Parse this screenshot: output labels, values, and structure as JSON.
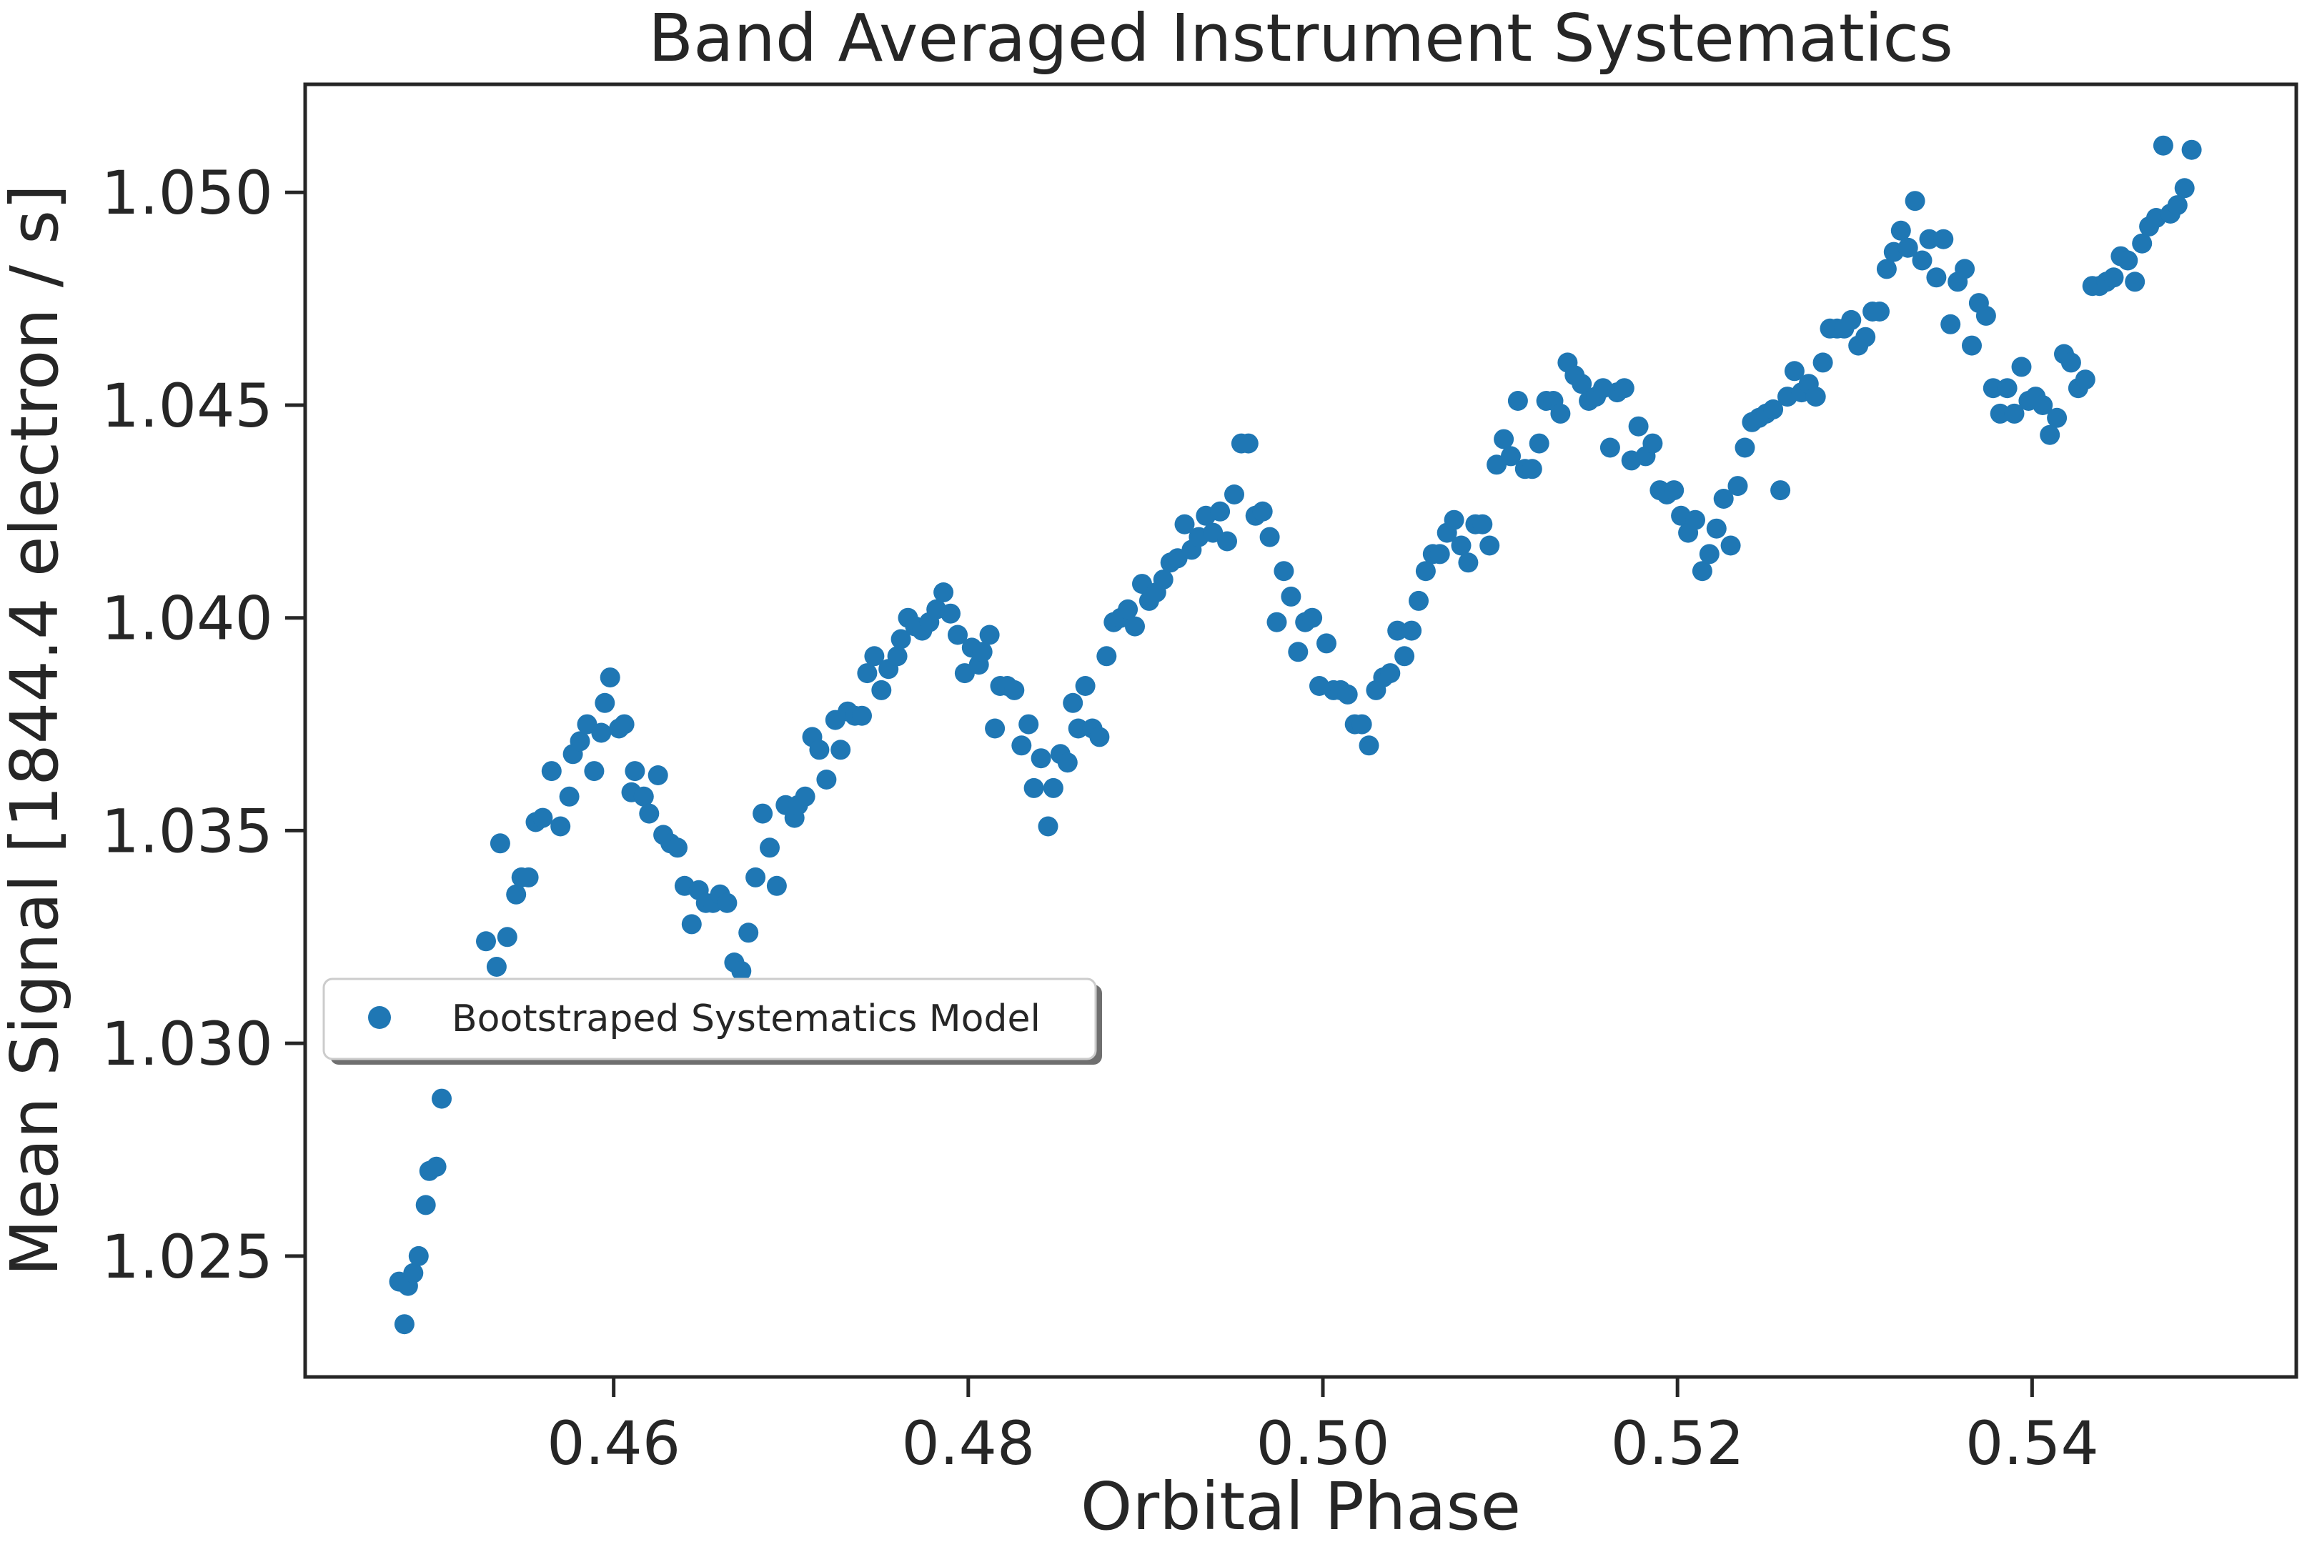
{
  "chart_data": {
    "type": "scatter",
    "title": "Band Averaged Instrument Systematics",
    "xlabel": "Orbital Phase",
    "ylabel": "Mean Signal [1844.4 electron / s]",
    "xlim": [
      0.4426,
      0.5549
    ],
    "ylim": [
      1.02216,
      1.05254
    ],
    "xticks": [
      0.46,
      0.48,
      0.5,
      0.52,
      0.54
    ],
    "xtick_labels": [
      "0.46",
      "0.48",
      "0.50",
      "0.52",
      "0.54"
    ],
    "yticks": [
      1.025,
      1.03,
      1.035,
      1.04,
      1.045,
      1.05
    ],
    "ytick_labels": [
      "1.025",
      "1.030",
      "1.035",
      "1.040",
      "1.045",
      "1.050"
    ],
    "grid": false,
    "legend_position": "center-left",
    "series": [
      {
        "name": "Bootstraped Systematics Model",
        "color": "#1f77b4",
        "x": [
          0.4479,
          0.4482,
          0.4484,
          0.4487,
          0.449,
          0.4494,
          0.4496,
          0.45,
          0.4503,
          0.4508,
          0.4528,
          0.4534,
          0.4536,
          0.454,
          0.4545,
          0.4548,
          0.4552,
          0.4556,
          0.456,
          0.4565,
          0.457,
          0.4575,
          0.4577,
          0.4581,
          0.4585,
          0.4589,
          0.4593,
          0.4595,
          0.4598,
          0.4603,
          0.4606,
          0.461,
          0.4612,
          0.4617,
          0.462,
          0.4625,
          0.4628,
          0.4632,
          0.4636,
          0.464,
          0.4644,
          0.4648,
          0.4652,
          0.4656,
          0.466,
          0.4664,
          0.4668,
          0.4672,
          0.4676,
          0.468,
          0.4684,
          0.4688,
          0.4692,
          0.4697,
          0.4702,
          0.4704,
          0.4708,
          0.4712,
          0.4716,
          0.472,
          0.4725,
          0.4728,
          0.4732,
          0.4736,
          0.474,
          0.4743,
          0.4747,
          0.4751,
          0.4755,
          0.476,
          0.4762,
          0.4766,
          0.477,
          0.4774,
          0.4778,
          0.4782,
          0.4786,
          0.479,
          0.4794,
          0.4798,
          0.4802,
          0.4806,
          0.4808,
          0.4812,
          0.4815,
          0.4818,
          0.4822,
          0.4826,
          0.483,
          0.4834,
          0.4837,
          0.4841,
          0.4845,
          0.4848,
          0.4852,
          0.4856,
          0.4859,
          0.4862,
          0.4866,
          0.487,
          0.4874,
          0.4878,
          0.4882,
          0.4886,
          0.489,
          0.4894,
          0.4898,
          0.4902,
          0.4906,
          0.491,
          0.4914,
          0.4918,
          0.4922,
          0.4926,
          0.493,
          0.4934,
          0.4938,
          0.4942,
          0.4946,
          0.495,
          0.4954,
          0.4958,
          0.4962,
          0.4966,
          0.497,
          0.4974,
          0.4978,
          0.4982,
          0.4986,
          0.499,
          0.4994,
          0.4998,
          0.5002,
          0.5006,
          0.501,
          0.5014,
          0.5018,
          0.5022,
          0.5026,
          0.503,
          0.5034,
          0.5038,
          0.5042,
          0.5046,
          0.505,
          0.5054,
          0.5058,
          0.5062,
          0.5066,
          0.507,
          0.5074,
          0.5078,
          0.5082,
          0.5086,
          0.509,
          0.5094,
          0.5098,
          0.5102,
          0.5106,
          0.511,
          0.5114,
          0.5118,
          0.5122,
          0.5126,
          0.513,
          0.5134,
          0.5138,
          0.5142,
          0.5146,
          0.515,
          0.5154,
          0.5158,
          0.5162,
          0.5166,
          0.517,
          0.5174,
          0.5178,
          0.5182,
          0.5186,
          0.519,
          0.5194,
          0.5198,
          0.5202,
          0.5206,
          0.521,
          0.5214,
          0.5218,
          0.5222,
          0.5226,
          0.523,
          0.5234,
          0.5238,
          0.5242,
          0.5246,
          0.525,
          0.5254,
          0.5258,
          0.5262,
          0.5266,
          0.527,
          0.5274,
          0.5278,
          0.5282,
          0.5286,
          0.529,
          0.5294,
          0.5298,
          0.5302,
          0.5306,
          0.531,
          0.5314,
          0.5318,
          0.5322,
          0.5326,
          0.533,
          0.5334,
          0.5338,
          0.5342,
          0.5346,
          0.535,
          0.5354,
          0.5358,
          0.5362,
          0.5366,
          0.537,
          0.5374,
          0.5378,
          0.5382,
          0.5386,
          0.539,
          0.5394,
          0.5398,
          0.5402,
          0.5406,
          0.541,
          0.5414,
          0.5418,
          0.5422,
          0.5426,
          0.543,
          0.5434,
          0.5438,
          0.5442,
          0.5446,
          0.545,
          0.5454,
          0.5458,
          0.5462,
          0.5466,
          0.547,
          0.5474,
          0.5478,
          0.5482,
          0.5486,
          0.549
        ],
        "y": [
          1.0244,
          1.0234,
          1.0243,
          1.0246,
          1.025,
          1.0262,
          1.027,
          1.0271,
          1.0287,
          1.0312,
          1.0324,
          1.0318,
          1.0347,
          1.0325,
          1.0335,
          1.0339,
          1.0339,
          1.0352,
          1.0353,
          1.0364,
          1.0351,
          1.0358,
          1.0368,
          1.0371,
          1.0375,
          1.0364,
          1.0373,
          1.038,
          1.0386,
          1.0374,
          1.0375,
          1.0359,
          1.0364,
          1.0358,
          1.0354,
          1.0363,
          1.0349,
          1.0347,
          1.0346,
          1.0337,
          1.0328,
          1.0336,
          1.0333,
          1.0333,
          1.0335,
          1.0333,
          1.0319,
          1.0317,
          1.0326,
          1.0339,
          1.0354,
          1.0346,
          1.0337,
          1.0356,
          1.0353,
          1.0356,
          1.0358,
          1.0372,
          1.0369,
          1.0362,
          1.0376,
          1.0369,
          1.0378,
          1.0377,
          1.0377,
          1.0387,
          1.0391,
          1.0383,
          1.0388,
          1.0391,
          1.0395,
          1.04,
          1.0398,
          1.0397,
          1.0399,
          1.0402,
          1.0406,
          1.0401,
          1.0396,
          1.0387,
          1.0393,
          1.0389,
          1.0392,
          1.0396,
          1.0374,
          1.0384,
          1.0384,
          1.0383,
          1.037,
          1.0375,
          1.036,
          1.0367,
          1.0351,
          1.036,
          1.0368,
          1.0366,
          1.038,
          1.0374,
          1.0384,
          1.0374,
          1.0372,
          1.0391,
          1.0399,
          1.04,
          1.0402,
          1.0398,
          1.0408,
          1.0404,
          1.0406,
          1.0409,
          1.0413,
          1.0414,
          1.0422,
          1.0416,
          1.0419,
          1.0424,
          1.042,
          1.0425,
          1.0418,
          1.0429,
          1.0441,
          1.0441,
          1.0424,
          1.0425,
          1.0419,
          1.0399,
          1.0411,
          1.0405,
          1.0392,
          1.0399,
          1.04,
          1.0384,
          1.0394,
          1.0383,
          1.0383,
          1.0382,
          1.0375,
          1.0375,
          1.037,
          1.0383,
          1.0386,
          1.0387,
          1.0397,
          1.0391,
          1.0397,
          1.0404,
          1.0411,
          1.0415,
          1.0415,
          1.042,
          1.0423,
          1.0417,
          1.0413,
          1.0422,
          1.0422,
          1.0417,
          1.0436,
          1.0442,
          1.0438,
          1.0451,
          1.0435,
          1.0435,
          1.0441,
          1.0451,
          1.0451,
          1.0448,
          1.046,
          1.0457,
          1.0455,
          1.0451,
          1.0452,
          1.0454,
          1.044,
          1.0453,
          1.0454,
          1.0437,
          1.0445,
          1.0438,
          1.0441,
          1.043,
          1.0429,
          1.043,
          1.0424,
          1.042,
          1.0423,
          1.0411,
          1.0415,
          1.0421,
          1.0428,
          1.0417,
          1.0431,
          1.044,
          1.0446,
          1.0447,
          1.0448,
          1.0449,
          1.043,
          1.0452,
          1.0458,
          1.0453,
          1.0455,
          1.0452,
          1.046,
          1.0468,
          1.0468,
          1.0468,
          1.047,
          1.0464,
          1.0466,
          1.0472,
          1.0472,
          1.0482,
          1.0486,
          1.0491,
          1.0487,
          1.0498,
          1.0484,
          1.0489,
          1.048,
          1.0489,
          1.0469,
          1.0479,
          1.0482,
          1.0464,
          1.0474,
          1.0471,
          1.0454,
          1.0448,
          1.0454,
          1.0448,
          1.0459,
          1.0451,
          1.0452,
          1.045,
          1.0443,
          1.0447,
          1.0462,
          1.046,
          1.0454,
          1.0456,
          1.0478,
          1.0478,
          1.0479,
          1.048,
          1.0485,
          1.0484,
          1.0479,
          1.0488,
          1.0492,
          1.0494,
          1.0511,
          1.0495,
          1.0497,
          1.0501,
          1.051
        ]
      }
    ]
  }
}
